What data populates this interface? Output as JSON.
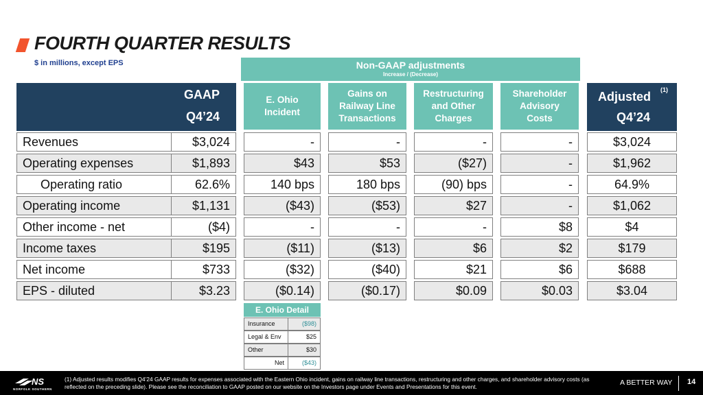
{
  "title": "FOURTH QUARTER RESULTS",
  "subtitle": "$ in millions, except EPS",
  "banner": {
    "title": "Non-GAAP adjustments",
    "subtitle": "Increase / (Decrease)"
  },
  "headers": {
    "gaap_line1": "GAAP",
    "gaap_line2": "Q4’24",
    "ohio": "E. Ohio Incident",
    "gains": "Gains on Railway Line Transactions",
    "restructuring": "Restructuring and Other Charges",
    "shareholder": "Shareholder Advisory Costs",
    "adjusted_line1": "Adjusted",
    "adjusted_note": "(1)",
    "adjusted_line2": "Q4’24"
  },
  "rows": [
    {
      "label": "Revenues",
      "gaap": "$3,024",
      "ohio": "-",
      "gains": "-",
      "restr": "-",
      "share": "-",
      "adj": "$3,024"
    },
    {
      "label": "Operating expenses",
      "gaap": "$1,893",
      "ohio": "$43",
      "gains": "$53",
      "restr": "($27)",
      "share": "-",
      "adj": "$1,962"
    },
    {
      "label": "Operating ratio",
      "gaap": "62.6%",
      "ohio": "140 bps",
      "gains": "180 bps",
      "restr": "(90) bps",
      "share": "-",
      "adj": "64.9%"
    },
    {
      "label": "Operating income",
      "gaap": "$1,131",
      "ohio": "($43)",
      "gains": "($53)",
      "restr": "$27",
      "share": "-",
      "adj": "$1,062"
    },
    {
      "label": "Other income - net",
      "gaap": "($4)",
      "ohio": "-",
      "gains": "-",
      "restr": "-",
      "share": "$8",
      "adj": "$4"
    },
    {
      "label": "Income taxes",
      "gaap": "$195",
      "ohio": "($11)",
      "gains": "($13)",
      "restr": "$6",
      "share": "$2",
      "adj": "$179"
    },
    {
      "label": "Net income",
      "gaap": "$733",
      "ohio": "($32)",
      "gains": "($40)",
      "restr": "$21",
      "share": "$6",
      "adj": "$688"
    },
    {
      "label": "EPS - diluted",
      "gaap": "$3.23",
      "ohio": "($0.14)",
      "gains": "($0.17)",
      "restr": "$0.09",
      "share": "$0.03",
      "adj": "$3.04"
    }
  ],
  "detail": {
    "title": "E. Ohio Detail",
    "rows": [
      {
        "label": "Insurance",
        "value": "($98)"
      },
      {
        "label": "Legal & Env",
        "value": "$25"
      },
      {
        "label": "Other",
        "value": "$30"
      },
      {
        "label": "Net",
        "value": "($43)"
      }
    ]
  },
  "footer": {
    "logo_text": "NORFOLK SOUTHERN",
    "footnote": "(1) Adjusted results modifies Q4’24 GAAP results for expenses associated with the Eastern Ohio incident, gains on railway line transactions, restructuring and other charges, and shareholder advisory costs (as reflected on the preceding slide).  Please see the reconciliation to GAAP posted on our website on the Investors page under Events and Presentations for this event.",
    "tagline": "A BETTER WAY",
    "page": "14"
  },
  "colors": {
    "navy": "#21415f",
    "teal": "#6dc2b4",
    "accent": "#f2542d",
    "subtitle": "#1f3f8f"
  }
}
